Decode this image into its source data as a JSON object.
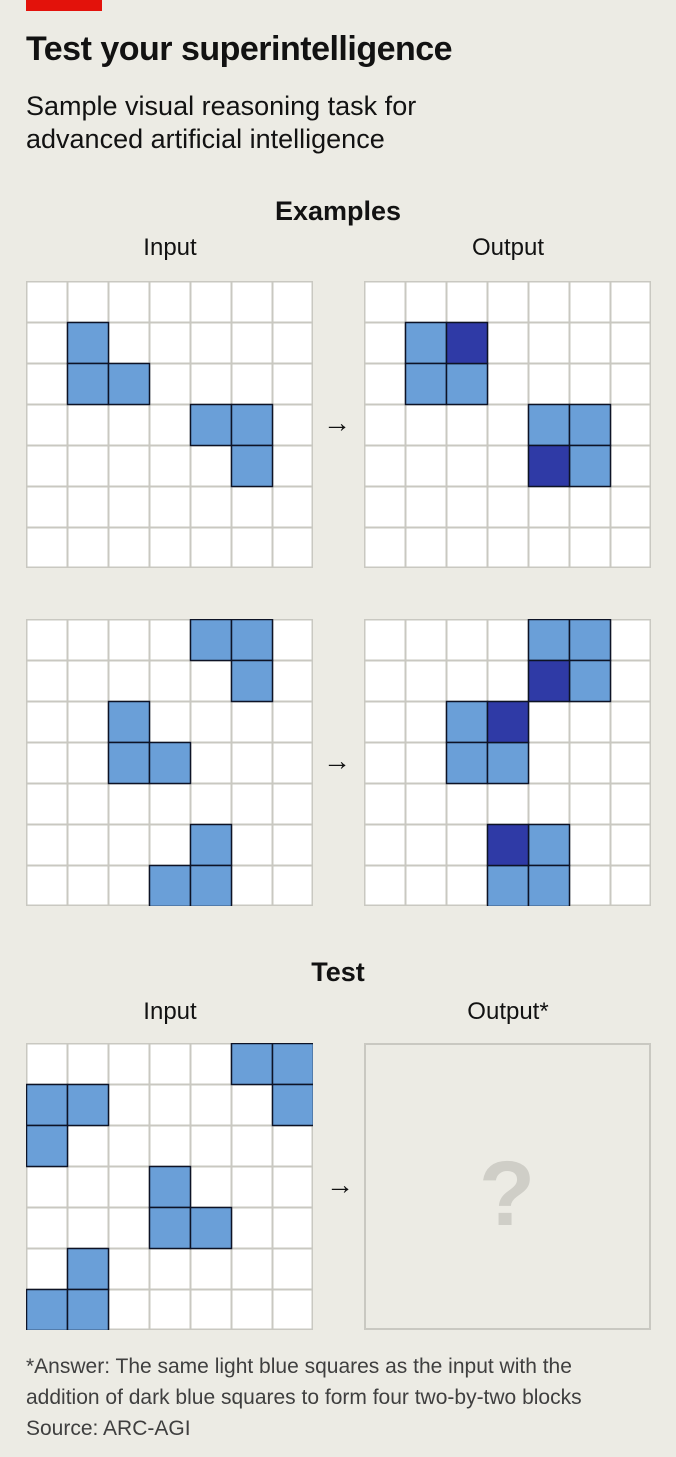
{
  "header": {
    "title": "Test your superintelligence",
    "subtitle_line1": "Sample visual reasoning task for",
    "subtitle_line2": "advanced artificial intelligence"
  },
  "examples": {
    "heading": "Examples",
    "input_label": "Input",
    "output_label": "Output",
    "pairs": [
      {
        "input": {
          "light": [
            [
              1,
              1
            ],
            [
              2,
              1
            ],
            [
              2,
              2
            ],
            [
              3,
              4
            ],
            [
              3,
              5
            ],
            [
              4,
              5
            ]
          ],
          "dark": []
        },
        "output": {
          "light": [
            [
              1,
              1
            ],
            [
              2,
              1
            ],
            [
              2,
              2
            ],
            [
              3,
              4
            ],
            [
              3,
              5
            ],
            [
              4,
              5
            ]
          ],
          "dark": [
            [
              1,
              2
            ],
            [
              4,
              4
            ]
          ]
        }
      },
      {
        "input": {
          "light": [
            [
              0,
              4
            ],
            [
              0,
              5
            ],
            [
              1,
              5
            ],
            [
              2,
              2
            ],
            [
              3,
              2
            ],
            [
              3,
              3
            ],
            [
              5,
              4
            ],
            [
              6,
              3
            ],
            [
              6,
              4
            ]
          ],
          "dark": []
        },
        "output": {
          "light": [
            [
              0,
              4
            ],
            [
              0,
              5
            ],
            [
              1,
              5
            ],
            [
              2,
              2
            ],
            [
              3,
              2
            ],
            [
              3,
              3
            ],
            [
              5,
              4
            ],
            [
              6,
              3
            ],
            [
              6,
              4
            ]
          ],
          "dark": [
            [
              1,
              4
            ],
            [
              2,
              3
            ],
            [
              5,
              3
            ]
          ]
        }
      }
    ]
  },
  "test": {
    "heading": "Test",
    "input_label": "Input",
    "output_label": "Output*",
    "input": {
      "light": [
        [
          0,
          5
        ],
        [
          0,
          6
        ],
        [
          1,
          6
        ],
        [
          1,
          0
        ],
        [
          1,
          1
        ],
        [
          2,
          0
        ],
        [
          3,
          3
        ],
        [
          4,
          3
        ],
        [
          4,
          4
        ],
        [
          5,
          1
        ],
        [
          6,
          0
        ],
        [
          6,
          1
        ]
      ],
      "dark": []
    },
    "output_placeholder": "?"
  },
  "arrow_symbol": "→",
  "colors": {
    "light_blue": "#6a9fd8",
    "dark_blue": "#2f3aa6",
    "grid_line": "#c9c8c1",
    "cell_bg": "#ffffff",
    "accent_red": "#e3120b"
  },
  "footnote": {
    "line1": "*Answer: The same light blue squares as the input with the",
    "line2": "addition of dark blue squares to form four two-by-two blocks",
    "source": "Source: ARC-AGI"
  }
}
